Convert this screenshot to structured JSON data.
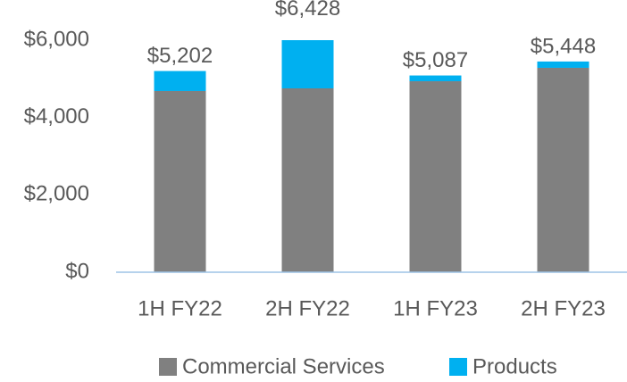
{
  "chart_data": {
    "type": "stacked_bar",
    "categories": [
      "1H FY22",
      "2H FY22",
      "1H FY23",
      "2H FY23"
    ],
    "series": [
      {
        "name": "Commercial Services",
        "color": "#808080",
        "values": [
          4685,
          4754,
          4938,
          5285
        ]
      },
      {
        "name": "Products",
        "color": "#00b0f0",
        "values": [
          517,
          1674,
          149,
          163
        ]
      }
    ],
    "total_labels": [
      "$5,202",
      "$6,428",
      "$5,087",
      "$5,448"
    ],
    "ylim": [
      0,
      6000
    ],
    "yticks": [
      {
        "value": 0,
        "label": "$0"
      },
      {
        "value": 2000,
        "label": "$2,000"
      },
      {
        "value": 4000,
        "label": "$4,000"
      },
      {
        "value": 6000,
        "label": "$6,000"
      }
    ],
    "grid": false,
    "legend": "bottom"
  }
}
